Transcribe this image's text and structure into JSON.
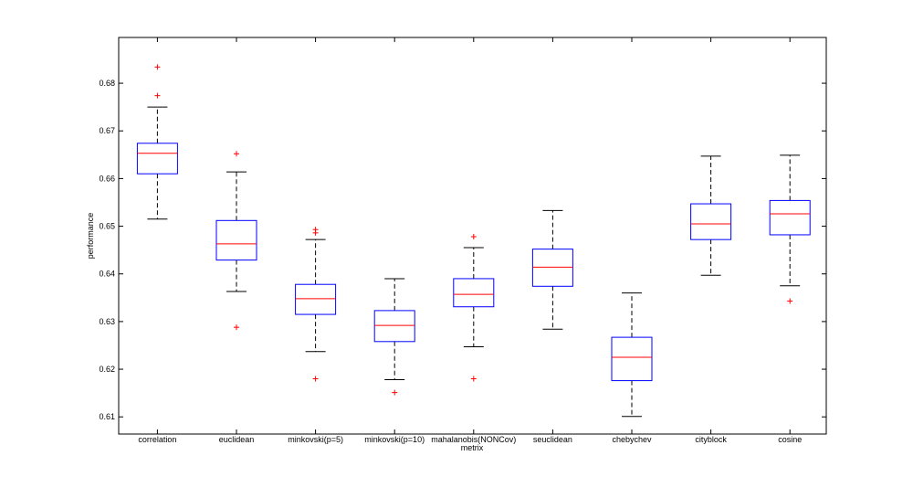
{
  "chart_data": {
    "type": "boxplot",
    "title": "",
    "xlabel": "metrix",
    "ylabel": "performance",
    "ylim": [
      0.6064,
      0.6896
    ],
    "yticks": [
      "0.61",
      "0.62",
      "0.63",
      "0.64",
      "0.65",
      "0.66",
      "0.67",
      "0.68"
    ],
    "grid": false,
    "categories": [
      "correlation",
      "euclidean",
      "minkovski(p=5)",
      "minkovski(p=10)",
      "mahalanobis(NONCov)",
      "seuclidean",
      "chebychev",
      "cityblock",
      "cosine"
    ],
    "boxes": [
      {
        "whisker_low": 0.6515,
        "q1": 0.661,
        "median": 0.6653,
        "q3": 0.6674,
        "whisker_high": 0.675,
        "outliers": [
          0.6774,
          0.6834
        ]
      },
      {
        "whisker_low": 0.6363,
        "q1": 0.6429,
        "median": 0.6463,
        "q3": 0.6512,
        "whisker_high": 0.6614,
        "outliers": [
          0.6652,
          0.6288
        ]
      },
      {
        "whisker_low": 0.6237,
        "q1": 0.6315,
        "median": 0.6348,
        "q3": 0.6378,
        "whisker_high": 0.6472,
        "outliers": [
          0.6493,
          0.6486,
          0.618
        ]
      },
      {
        "whisker_low": 0.6178,
        "q1": 0.6258,
        "median": 0.6292,
        "q3": 0.6323,
        "whisker_high": 0.639,
        "outliers": [
          0.6151
        ]
      },
      {
        "whisker_low": 0.6247,
        "q1": 0.6331,
        "median": 0.6357,
        "q3": 0.639,
        "whisker_high": 0.6455,
        "outliers": [
          0.6478,
          0.618
        ]
      },
      {
        "whisker_low": 0.6284,
        "q1": 0.6374,
        "median": 0.6414,
        "q3": 0.6452,
        "whisker_high": 0.6533,
        "outliers": []
      },
      {
        "whisker_low": 0.6101,
        "q1": 0.6176,
        "median": 0.6225,
        "q3": 0.6267,
        "whisker_high": 0.636,
        "outliers": []
      },
      {
        "whisker_low": 0.6397,
        "q1": 0.6472,
        "median": 0.6505,
        "q3": 0.6547,
        "whisker_high": 0.6647,
        "outliers": []
      },
      {
        "whisker_low": 0.6375,
        "q1": 0.6482,
        "median": 0.6526,
        "q3": 0.6554,
        "whisker_high": 0.6649,
        "outliers": [
          0.6343
        ]
      }
    ],
    "colors": {
      "box": "#0000ff",
      "median": "#ff0000",
      "whisker": "#000000",
      "outlier": "#ff0000",
      "axes": "#000000"
    }
  }
}
